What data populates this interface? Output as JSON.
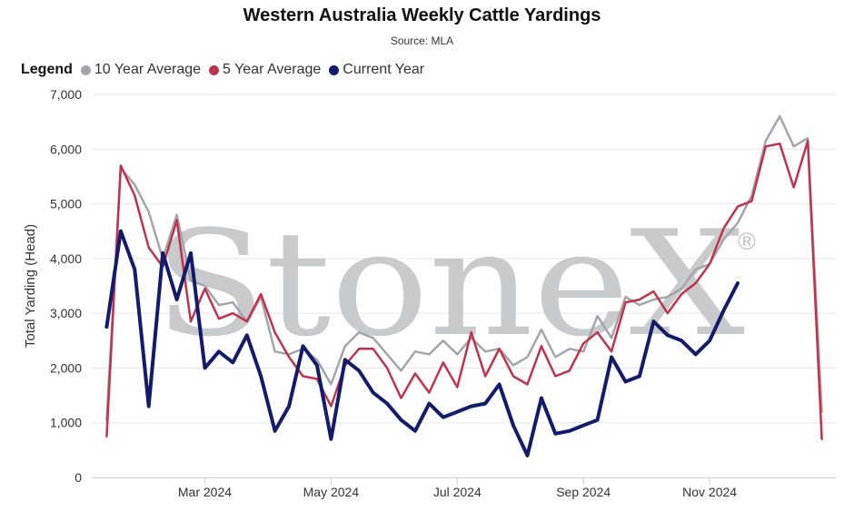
{
  "chart_data": {
    "type": "line",
    "title": "Western Australia Weekly Cattle Yardings",
    "subtitle": "Source: MLA",
    "legend_title": "Legend",
    "ylabel": "Total Yarding (Head)",
    "xlabel": "",
    "ylim": [
      0,
      7000
    ],
    "yticks": [
      0,
      1000,
      2000,
      3000,
      4000,
      5000,
      6000,
      7000
    ],
    "ytick_labels": [
      "0",
      "1,000",
      "2,000",
      "3,000",
      "4,000",
      "5,000",
      "6,000",
      "7,000"
    ],
    "x_tick_labels": [
      {
        "label": "Mar 2024",
        "week": 8
      },
      {
        "label": "May 2024",
        "week": 17
      },
      {
        "label": "Jul 2024",
        "week": 26
      },
      {
        "label": "Sep 2024",
        "week": 35
      },
      {
        "label": "Nov 2024",
        "week": 44
      }
    ],
    "xlim": [
      0,
      53
    ],
    "grid": true,
    "legend_position": "top-left",
    "watermark": "StoneX",
    "watermark_mark": "®",
    "series": [
      {
        "name": "10 Year Average",
        "color": "#a2a5ab",
        "x": [
          1,
          2,
          3,
          4,
          5,
          6,
          7,
          8,
          9,
          10,
          11,
          12,
          13,
          14,
          15,
          16,
          17,
          18,
          19,
          20,
          21,
          22,
          23,
          24,
          25,
          26,
          27,
          28,
          29,
          30,
          31,
          32,
          33,
          34,
          35,
          36,
          37,
          38,
          39,
          40,
          41,
          42,
          43,
          44,
          45,
          46,
          47,
          48,
          49,
          50,
          51,
          52
        ],
        "values": [
          1050,
          5650,
          5350,
          4850,
          4000,
          4800,
          3600,
          3500,
          3150,
          3200,
          2850,
          3300,
          2300,
          2250,
          2350,
          2150,
          1700,
          2400,
          2650,
          2550,
          2250,
          1950,
          2300,
          2250,
          2500,
          2250,
          2550,
          2300,
          2350,
          2050,
          2200,
          2700,
          2200,
          2350,
          2300,
          2950,
          2550,
          3300,
          3150,
          3250,
          3300,
          3450,
          3800,
          3900,
          4350,
          4650,
          5150,
          6150,
          6600,
          6050,
          6200,
          1200
        ]
      },
      {
        "name": "5 Year Average",
        "color": "#c0334f",
        "x": [
          1,
          2,
          3,
          4,
          5,
          6,
          7,
          8,
          9,
          10,
          11,
          12,
          13,
          14,
          15,
          16,
          17,
          18,
          19,
          20,
          21,
          22,
          23,
          24,
          25,
          26,
          27,
          28,
          29,
          30,
          31,
          32,
          33,
          34,
          35,
          36,
          37,
          38,
          39,
          40,
          41,
          42,
          43,
          44,
          45,
          46,
          47,
          48,
          49,
          50,
          51,
          52
        ],
        "values": [
          750,
          5700,
          5150,
          4200,
          3850,
          4700,
          2850,
          3450,
          2900,
          3000,
          2850,
          3350,
          2650,
          2200,
          1850,
          1800,
          1300,
          2050,
          2350,
          2350,
          2000,
          1450,
          1900,
          1550,
          2100,
          1650,
          2650,
          1850,
          2350,
          1850,
          1700,
          2400,
          1850,
          1950,
          2450,
          2650,
          2300,
          3200,
          3250,
          3400,
          3000,
          3350,
          3550,
          3900,
          4550,
          4950,
          5050,
          6050,
          6100,
          5300,
          6150,
          700
        ]
      },
      {
        "name": "Current Year",
        "color": "#141b6b",
        "x": [
          1,
          2,
          3,
          4,
          5,
          6,
          7,
          8,
          9,
          10,
          11,
          12,
          13,
          14,
          15,
          16,
          17,
          18,
          19,
          20,
          21,
          22,
          23,
          24,
          25,
          26,
          27,
          28,
          29,
          30,
          31,
          32,
          33,
          34,
          35,
          36,
          37,
          38,
          39,
          40,
          41,
          42,
          43,
          44,
          45,
          46
        ],
        "values": [
          2750,
          4500,
          3800,
          1300,
          4100,
          3250,
          4100,
          2000,
          2300,
          2100,
          2600,
          1850,
          850,
          1300,
          2400,
          2050,
          700,
          2150,
          1950,
          1550,
          1350,
          1050,
          850,
          1350,
          1100,
          1200,
          1300,
          1350,
          1700,
          950,
          400,
          1450,
          800,
          850,
          950,
          1050,
          2200,
          1750,
          1850,
          2850,
          2600,
          2500,
          2250,
          2500,
          3050,
          3550
        ]
      }
    ]
  }
}
